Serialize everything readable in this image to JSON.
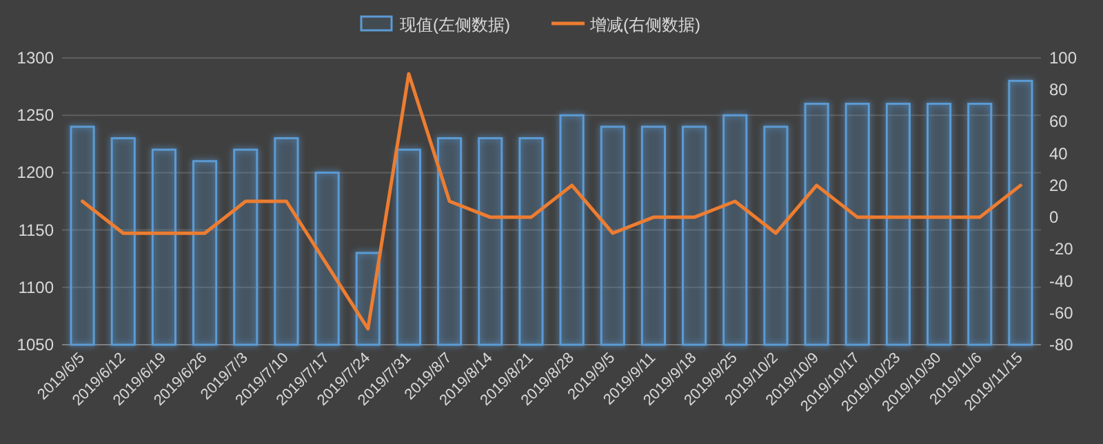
{
  "chart_data": {
    "type": "bar",
    "categories": [
      "2019/6/5",
      "2019/6/12",
      "2019/6/19",
      "2019/6/26",
      "2019/7/3",
      "2019/7/10",
      "2019/7/17",
      "2019/7/24",
      "2019/7/31",
      "2019/8/7",
      "2019/8/14",
      "2019/8/21",
      "2019/8/28",
      "2019/9/5",
      "2019/9/11",
      "2019/9/18",
      "2019/9/25",
      "2019/10/2",
      "2019/10/9",
      "2019/10/17",
      "2019/10/23",
      "2019/10/30",
      "2019/11/6",
      "2019/11/15"
    ],
    "series": [
      {
        "name": "现值(左侧数据)",
        "color": "#5b9bd5",
        "values": [
          1240,
          1230,
          1220,
          1210,
          1220,
          1230,
          1200,
          1130,
          1220,
          1230,
          1230,
          1230,
          1250,
          1240,
          1240,
          1240,
          1250,
          1240,
          1260,
          1260,
          1260,
          1260,
          1260,
          1280
        ]
      },
      {
        "name": "增减(右侧数据)",
        "type": "line",
        "axis": "y2",
        "color": "#ed7d31",
        "values": [
          10,
          -10,
          -10,
          -10,
          10,
          10,
          -30,
          -70,
          90,
          10,
          0,
          0,
          20,
          -10,
          0,
          0,
          10,
          -10,
          20,
          0,
          0,
          0,
          0,
          20
        ]
      }
    ],
    "ylim": [
      1050,
      1300
    ],
    "yticks": [
      1050,
      1100,
      1150,
      1200,
      1250,
      1300
    ],
    "y2lim": [
      -80,
      100
    ],
    "y2ticks": [
      -80,
      -60,
      -40,
      -20,
      0,
      20,
      40,
      60,
      80,
      100
    ],
    "grid": "y",
    "legend": "top",
    "marker": "none",
    "line_style": "solid"
  }
}
